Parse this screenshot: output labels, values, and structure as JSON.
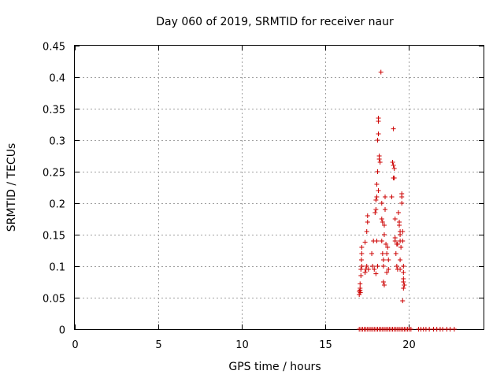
{
  "chart_data": {
    "type": "scatter",
    "title": "Day 060 of 2019, SRMTID for receiver naur",
    "xlabel": "GPS time / hours",
    "ylabel": "SRMTID / TECUs",
    "xlim": [
      0,
      24.5
    ],
    "ylim": [
      0,
      0.45
    ],
    "xticks": [
      "0",
      "5",
      "10",
      "15",
      "20"
    ],
    "yticks": [
      "0",
      "0.05",
      "0.1",
      "0.15",
      "0.2",
      "0.25",
      "0.3",
      "0.35",
      "0.4",
      "0.45"
    ],
    "grid": true,
    "marker": "plus",
    "color": "#cc0000",
    "series": [
      {
        "name": "SRMTID",
        "points": [
          [
            17.05,
            0.06
          ],
          [
            17.05,
            0.055
          ],
          [
            17.1,
            0.062
          ],
          [
            17.1,
            0.065
          ],
          [
            17.12,
            0.058
          ],
          [
            17.1,
            0.072
          ],
          [
            17.15,
            0.095
          ],
          [
            17.18,
            0.11
          ],
          [
            17.2,
            0.12
          ],
          [
            17.2,
            0.1
          ],
          [
            17.2,
            0.13
          ],
          [
            17.15,
            0.085
          ],
          [
            17.4,
            0.09
          ],
          [
            17.45,
            0.095
          ],
          [
            17.5,
            0.1
          ],
          [
            17.5,
            0.155
          ],
          [
            17.55,
            0.17
          ],
          [
            17.55,
            0.18
          ],
          [
            17.4,
            0.138
          ],
          [
            17.6,
            0.095
          ],
          [
            17.8,
            0.12
          ],
          [
            17.85,
            0.1
          ],
          [
            17.9,
            0.14
          ],
          [
            17.95,
            0.095
          ],
          [
            18.0,
            0.185
          ],
          [
            18.05,
            0.19
          ],
          [
            18.05,
            0.205
          ],
          [
            18.1,
            0.23
          ],
          [
            18.1,
            0.21
          ],
          [
            18.15,
            0.3
          ],
          [
            18.2,
            0.31
          ],
          [
            18.2,
            0.33
          ],
          [
            18.2,
            0.335
          ],
          [
            18.25,
            0.27
          ],
          [
            18.25,
            0.275
          ],
          [
            18.3,
            0.265
          ],
          [
            18.15,
            0.25
          ],
          [
            18.2,
            0.22
          ],
          [
            18.1,
            0.14
          ],
          [
            18.05,
            0.088
          ],
          [
            18.15,
            0.1
          ],
          [
            18.35,
            0.408
          ],
          [
            18.4,
            0.2
          ],
          [
            18.4,
            0.175
          ],
          [
            18.45,
            0.17
          ],
          [
            18.4,
            0.14
          ],
          [
            18.45,
            0.12
          ],
          [
            18.5,
            0.1
          ],
          [
            18.5,
            0.11
          ],
          [
            18.5,
            0.075
          ],
          [
            18.55,
            0.07
          ],
          [
            18.55,
            0.15
          ],
          [
            18.55,
            0.165
          ],
          [
            18.6,
            0.21
          ],
          [
            18.6,
            0.19
          ],
          [
            18.65,
            0.135
          ],
          [
            18.7,
            0.12
          ],
          [
            18.7,
            0.09
          ],
          [
            18.75,
            0.13
          ],
          [
            18.8,
            0.095
          ],
          [
            18.8,
            0.11
          ],
          [
            19.0,
            0.21
          ],
          [
            19.05,
            0.265
          ],
          [
            19.1,
            0.26
          ],
          [
            19.1,
            0.318
          ],
          [
            19.15,
            0.255
          ],
          [
            19.1,
            0.24
          ],
          [
            19.15,
            0.24
          ],
          [
            19.2,
            0.145
          ],
          [
            19.2,
            0.14
          ],
          [
            19.2,
            0.175
          ],
          [
            19.25,
            0.12
          ],
          [
            19.3,
            0.135
          ],
          [
            19.3,
            0.1
          ],
          [
            19.35,
            0.095
          ],
          [
            19.35,
            0.135
          ],
          [
            19.4,
            0.185
          ],
          [
            19.45,
            0.165
          ],
          [
            19.45,
            0.17
          ],
          [
            19.5,
            0.155
          ],
          [
            19.5,
            0.15
          ],
          [
            19.5,
            0.14
          ],
          [
            19.5,
            0.11
          ],
          [
            19.5,
            0.095
          ],
          [
            19.55,
            0.13
          ],
          [
            19.6,
            0.2
          ],
          [
            19.6,
            0.21
          ],
          [
            19.6,
            0.215
          ],
          [
            19.65,
            0.155
          ],
          [
            19.65,
            0.14
          ],
          [
            19.7,
            0.1
          ],
          [
            19.7,
            0.09
          ],
          [
            19.7,
            0.08
          ],
          [
            19.7,
            0.075
          ],
          [
            19.75,
            0.07
          ],
          [
            19.65,
            0.045
          ],
          [
            19.7,
            0.065
          ],
          [
            17.05,
            0
          ],
          [
            17.15,
            0
          ],
          [
            17.25,
            0
          ],
          [
            17.35,
            0
          ],
          [
            17.45,
            0
          ],
          [
            17.55,
            0
          ],
          [
            17.65,
            0
          ],
          [
            17.75,
            0
          ],
          [
            17.85,
            0
          ],
          [
            17.95,
            0
          ],
          [
            18.05,
            0
          ],
          [
            18.15,
            0
          ],
          [
            18.25,
            0
          ],
          [
            18.35,
            0
          ],
          [
            18.45,
            0
          ],
          [
            18.55,
            0
          ],
          [
            18.65,
            0
          ],
          [
            18.75,
            0
          ],
          [
            18.85,
            0
          ],
          [
            18.95,
            0
          ],
          [
            19.05,
            0
          ],
          [
            19.15,
            0
          ],
          [
            19.25,
            0
          ],
          [
            19.35,
            0
          ],
          [
            19.45,
            0
          ],
          [
            19.55,
            0
          ],
          [
            19.65,
            0
          ],
          [
            19.75,
            0
          ],
          [
            19.85,
            0
          ],
          [
            19.95,
            0
          ],
          [
            20.05,
            0
          ],
          [
            20.15,
            0
          ],
          [
            20.6,
            0
          ],
          [
            20.75,
            0
          ],
          [
            20.9,
            0
          ],
          [
            21.05,
            0
          ],
          [
            21.25,
            0
          ],
          [
            21.5,
            0
          ],
          [
            21.7,
            0
          ],
          [
            21.9,
            0
          ],
          [
            22.05,
            0
          ],
          [
            22.3,
            0
          ],
          [
            22.5,
            0
          ],
          [
            22.75,
            0
          ]
        ]
      }
    ]
  }
}
